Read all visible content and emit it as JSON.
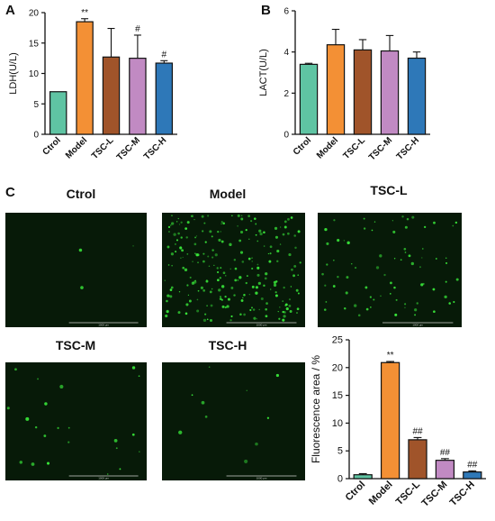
{
  "panel_letters": [
    "A",
    "B",
    "C"
  ],
  "micrographs": {
    "panels": [
      {
        "label": "Ctrol",
        "dots": 3
      },
      {
        "label": "Model",
        "dots": 230
      },
      {
        "label": "TSC-L",
        "dots": 75
      },
      {
        "label": "TSC-M",
        "dots": 22
      },
      {
        "label": "TSC-H",
        "dots": 10
      }
    ],
    "background": "#071a08",
    "dot_color": "#39e83a",
    "scale_bar_label": "1000 μm"
  },
  "chart_data": [
    {
      "type": "bar",
      "panel": "A",
      "categories": [
        "Ctrol",
        "Model",
        "TSC-L",
        "TSC-M",
        "TSC-H"
      ],
      "values": [
        7.0,
        18.5,
        12.7,
        12.5,
        11.7
      ],
      "errors": [
        0.0,
        0.5,
        4.7,
        3.8,
        0.4
      ],
      "annotations": [
        "",
        "**",
        "",
        "#",
        "#"
      ],
      "colors": [
        "#5fc4a3",
        "#f39035",
        "#a0542a",
        "#c18ac3",
        "#2e78b8"
      ],
      "xlabel": "",
      "ylabel": "LDH(U/L)",
      "ylim": [
        0,
        20
      ],
      "yticks": [
        0,
        5,
        10,
        15,
        20
      ],
      "grid": false,
      "legend": "none"
    },
    {
      "type": "bar",
      "panel": "B",
      "categories": [
        "Ctrol",
        "Model",
        "TSC-L",
        "TSC-M",
        "TSC-H"
      ],
      "values": [
        3.4,
        4.35,
        4.1,
        4.05,
        3.7
      ],
      "errors": [
        0.05,
        0.75,
        0.5,
        0.75,
        0.3
      ],
      "annotations": [
        "",
        "",
        "",
        "",
        ""
      ],
      "colors": [
        "#5fc4a3",
        "#f39035",
        "#a0542a",
        "#c18ac3",
        "#2e78b8"
      ],
      "xlabel": "",
      "ylabel": "LACT(U/L)",
      "ylim": [
        0,
        6
      ],
      "yticks": [
        0,
        2,
        4,
        6
      ],
      "grid": false,
      "legend": "none"
    },
    {
      "type": "bar",
      "panel": "C",
      "categories": [
        "Ctrol",
        "Model",
        "TSC-L",
        "TSC-M",
        "TSC-H"
      ],
      "values": [
        0.7,
        20.9,
        7.0,
        3.3,
        1.2
      ],
      "errors": [
        0.2,
        0.2,
        0.4,
        0.3,
        0.2
      ],
      "annotations": [
        "",
        "**",
        "##",
        "##",
        "##"
      ],
      "colors": [
        "#5fc4a3",
        "#f39035",
        "#a0542a",
        "#c18ac3",
        "#2e78b8"
      ],
      "xlabel": "",
      "ylabel": "Fluorescence area / %",
      "ylim": [
        0,
        25
      ],
      "yticks": [
        0,
        5,
        10,
        15,
        20,
        25
      ],
      "grid": false,
      "legend": "none"
    }
  ]
}
